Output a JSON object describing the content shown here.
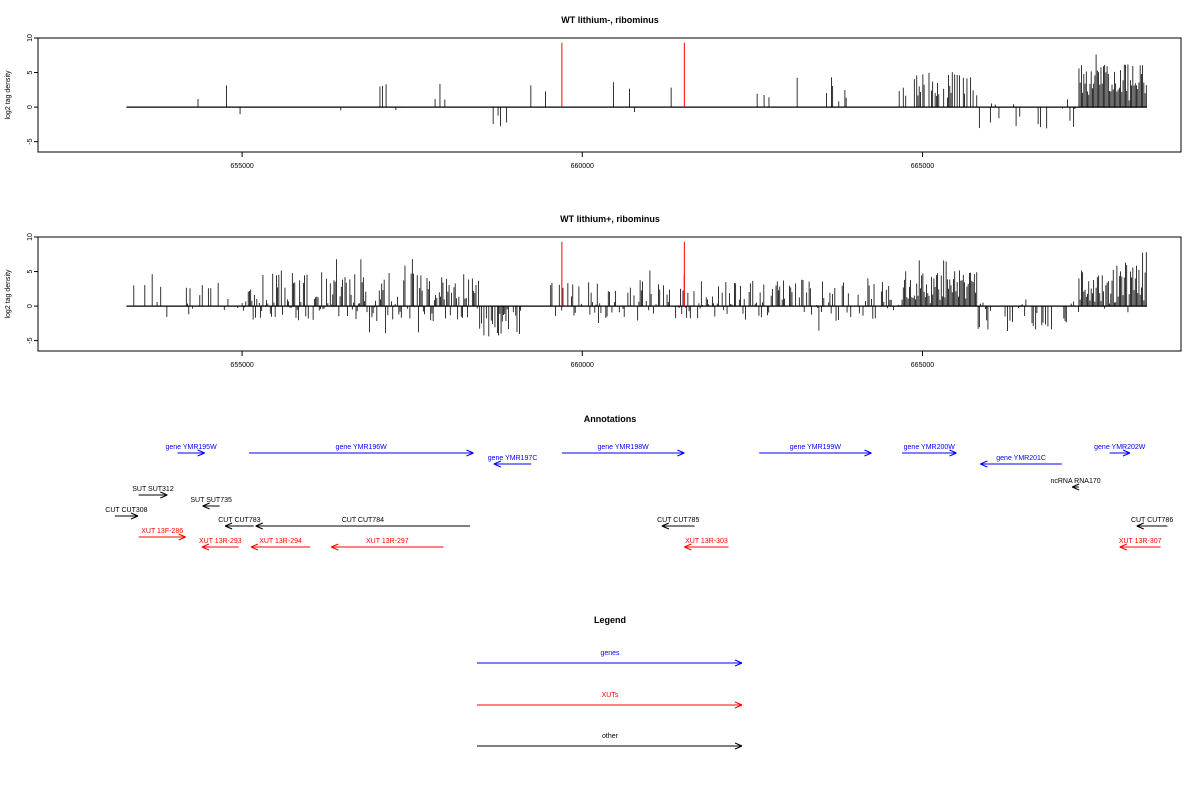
{
  "figure_titles": {
    "annotations": "Annotations",
    "legend": "Legend"
  },
  "colors": {
    "gene": "#0000ff",
    "xut": "#ff0000",
    "other": "#000000",
    "peak": "#ff0000"
  },
  "chart_data": [
    {
      "type": "bar",
      "title": "WT lithium-, ribominus",
      "ylabel": "log2 tag density",
      "xlabel": "",
      "xlim": [
        652000,
        668800
      ],
      "ylim": [
        -6.5,
        10
      ],
      "xticks": [
        655000,
        660000,
        665000
      ],
      "yticks": [
        -5,
        0,
        5,
        10
      ],
      "grid": false,
      "red_markers": [
        {
          "x": 659700,
          "y": 9.3
        },
        {
          "x": 661500,
          "y": 9.3
        }
      ],
      "density_segments": [
        {
          "x_start": 653300,
          "x_end": 654100,
          "mean": 0.8,
          "spread": 0.8,
          "density": 0.005
        },
        {
          "x_start": 654100,
          "x_end": 654700,
          "mean": 2.5,
          "spread": 1.4,
          "density": 0.02
        },
        {
          "x_start": 654700,
          "x_end": 656000,
          "mean": 0.5,
          "spread": 1.8,
          "density": 0.006
        },
        {
          "x_start": 656000,
          "x_end": 658100,
          "mean": 1.4,
          "spread": 1.4,
          "density": 0.012
        },
        {
          "x_start": 658100,
          "x_end": 658600,
          "mean": 1.5,
          "spread": 1.5,
          "density": 0.01
        },
        {
          "x_start": 658600,
          "x_end": 659100,
          "mean": -2.3,
          "spread": 1.4,
          "density": 0.03
        },
        {
          "x_start": 659100,
          "x_end": 660100,
          "mean": 1.5,
          "spread": 1.2,
          "density": 0.01
        },
        {
          "x_start": 660100,
          "x_end": 661400,
          "mean": 1.4,
          "spread": 1.4,
          "density": 0.012
        },
        {
          "x_start": 661400,
          "x_end": 662600,
          "mean": 1.2,
          "spread": 1.2,
          "density": 0.01
        },
        {
          "x_start": 662600,
          "x_end": 664100,
          "mean": 2.4,
          "spread": 1.2,
          "density": 0.025
        },
        {
          "x_start": 664100,
          "x_end": 664700,
          "mean": 0.3,
          "spread": 1.5,
          "density": 0.005
        },
        {
          "x_start": 664700,
          "x_end": 665800,
          "mean": 3.2,
          "spread": 1.0,
          "density": 0.11
        },
        {
          "x_start": 665800,
          "x_end": 667300,
          "mean": -1.1,
          "spread": 1.4,
          "density": 0.025
        },
        {
          "x_start": 667300,
          "x_end": 668300,
          "mean": 4.2,
          "spread": 1.4,
          "density": 0.2
        }
      ]
    },
    {
      "type": "bar",
      "title": "WT lithium+, ribominus",
      "ylabel": "log2 tag density",
      "xlabel": "",
      "xlim": [
        652000,
        668800
      ],
      "ylim": [
        -6.5,
        10
      ],
      "xticks": [
        655000,
        660000,
        665000
      ],
      "yticks": [
        -5,
        0,
        5,
        10
      ],
      "grid": false,
      "red_markers": [
        {
          "x": 659700,
          "y": 9.3
        },
        {
          "x": 661500,
          "y": 9.3
        }
      ],
      "density_segments": [
        {
          "x_start": 653300,
          "x_end": 654000,
          "mean": 0.5,
          "spread": 1.8,
          "density": 0.03
        },
        {
          "x_start": 654000,
          "x_end": 655000,
          "mean": 1.6,
          "spread": 1.8,
          "density": 0.06
        },
        {
          "x_start": 655000,
          "x_end": 658500,
          "mean": 1.3,
          "spread": 2.2,
          "density": 0.17
        },
        {
          "x_start": 658500,
          "x_end": 659100,
          "mean": -2.5,
          "spread": 1.4,
          "density": 0.12
        },
        {
          "x_start": 659100,
          "x_end": 659500,
          "mean": 0.6,
          "spread": 1.2,
          "density": 0.02
        },
        {
          "x_start": 659500,
          "x_end": 664700,
          "mean": 1.0,
          "spread": 1.8,
          "density": 0.12
        },
        {
          "x_start": 664700,
          "x_end": 665800,
          "mean": 3.0,
          "spread": 1.4,
          "density": 0.2
        },
        {
          "x_start": 665800,
          "x_end": 667300,
          "mean": -1.2,
          "spread": 1.5,
          "density": 0.1
        },
        {
          "x_start": 667300,
          "x_end": 668300,
          "mean": 3.2,
          "spread": 1.8,
          "density": 0.2
        }
      ]
    }
  ],
  "annotations": [
    {
      "label": "gene YMR195W",
      "kind": "gene",
      "strand": "+",
      "start": 654050,
      "end": 654450,
      "row": 0,
      "label_row": 0
    },
    {
      "label": "gene YMR196W",
      "kind": "gene",
      "strand": "+",
      "start": 655100,
      "end": 658400,
      "row": 0,
      "label_row": 0
    },
    {
      "label": "gene YMR197C",
      "kind": "gene",
      "strand": "-",
      "start": 658700,
      "end": 659250,
      "row": 1,
      "label_row": 1
    },
    {
      "label": "gene YMR198W",
      "kind": "gene",
      "strand": "+",
      "start": 659700,
      "end": 661500,
      "row": 0,
      "label_row": 0
    },
    {
      "label": "gene YMR199W",
      "kind": "gene",
      "strand": "+",
      "start": 662600,
      "end": 664250,
      "row": 0,
      "label_row": 0
    },
    {
      "label": "gene YMR200W",
      "kind": "gene",
      "strand": "+",
      "start": 664700,
      "end": 665500,
      "row": 0,
      "label_row": 0
    },
    {
      "label": "gene YMR201C",
      "kind": "gene",
      "strand": "-",
      "start": 665850,
      "end": 667050,
      "row": 1,
      "label_row": 1
    },
    {
      "label": "gene YMR202W",
      "kind": "gene",
      "strand": "+",
      "start": 667750,
      "end": 668050,
      "row": 0,
      "label_row": 0
    },
    {
      "label": "ncRNA RNA170",
      "kind": "other",
      "strand": "-",
      "start": 667200,
      "end": 667300,
      "row": 2,
      "label_row": 2
    },
    {
      "label": "SUT SUT312",
      "kind": "other",
      "strand": "+",
      "start": 653480,
      "end": 653900,
      "row": 3,
      "label_row": 3
    },
    {
      "label": "SUT SUT735",
      "kind": "other",
      "strand": "-",
      "start": 654420,
      "end": 654670,
      "row": 4,
      "label_row": 4
    },
    {
      "label": "CUT CUT308",
      "kind": "other",
      "strand": "+",
      "start": 653130,
      "end": 653470,
      "row": 5,
      "label_row": 5
    },
    {
      "label": "CUT CUT783",
      "kind": "other",
      "strand": "-",
      "start": 654750,
      "end": 655170,
      "row": 6,
      "label_row": 6
    },
    {
      "label": "CUT CUT784",
      "kind": "other",
      "strand": "-",
      "start": 655200,
      "end": 658350,
      "row": 6,
      "label_row": 6
    },
    {
      "label": "CUT CUT785",
      "kind": "other",
      "strand": "-",
      "start": 661170,
      "end": 661650,
      "row": 6,
      "label_row": 6
    },
    {
      "label": "CUT CUT786",
      "kind": "other",
      "strand": "-",
      "start": 668150,
      "end": 668600,
      "row": 6,
      "label_row": 6
    },
    {
      "label": "XUT 13F-286",
      "kind": "xut",
      "strand": "+",
      "start": 653480,
      "end": 654170,
      "row": 7,
      "label_row": 7
    },
    {
      "label": "XUT 13R-293",
      "kind": "xut",
      "strand": "-",
      "start": 654410,
      "end": 654950,
      "row": 8,
      "label_row": 8
    },
    {
      "label": "XUT 13R-294",
      "kind": "xut",
      "strand": "-",
      "start": 655130,
      "end": 656000,
      "row": 8,
      "label_row": 8
    },
    {
      "label": "XUT 13R-297",
      "kind": "xut",
      "strand": "-",
      "start": 656310,
      "end": 657960,
      "row": 8,
      "label_row": 8
    },
    {
      "label": "XUT 13R-303",
      "kind": "xut",
      "strand": "-",
      "start": 661500,
      "end": 662150,
      "row": 8,
      "label_row": 8
    },
    {
      "label": "XUT 13R-307",
      "kind": "xut",
      "strand": "-",
      "start": 667900,
      "end": 668500,
      "row": 8,
      "label_row": 8
    }
  ],
  "legend": [
    {
      "label": "genes",
      "kind": "gene"
    },
    {
      "label": "XUTs",
      "kind": "xut"
    },
    {
      "label": "other",
      "kind": "other"
    }
  ]
}
